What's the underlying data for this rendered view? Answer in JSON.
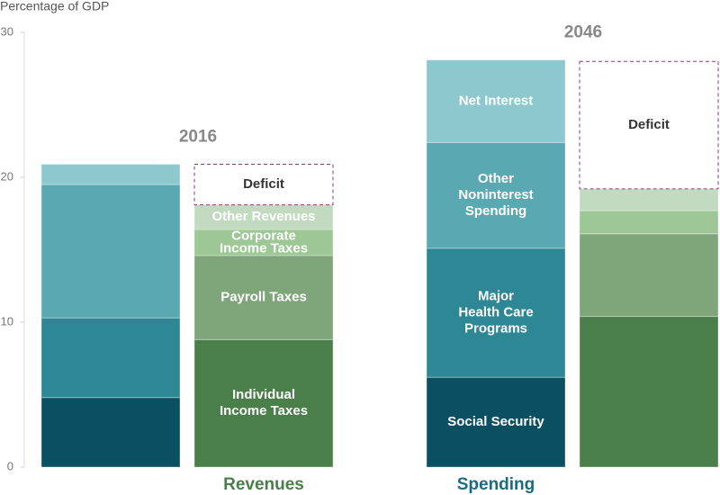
{
  "chart_data": {
    "type": "stacked_bar",
    "ylabel": "Percentage of GDP",
    "ylim": [
      0,
      30
    ],
    "yticks": [
      0,
      10,
      20,
      30
    ],
    "groups": [
      {
        "label": "2016",
        "bars": [
          {
            "caption": null,
            "segments": [
              {
                "label": [
                  "Social Security"
                ],
                "color": "#0b4f63",
                "value": 4.8,
                "show_label": false
              },
              {
                "label": [
                  "Major",
                  "Health Care",
                  "Programs"
                ],
                "color": "#2e8795",
                "value": 5.5,
                "show_label": false
              },
              {
                "label": [
                  "Other",
                  "Noninterest",
                  "Spending"
                ],
                "color": "#5aa9b2",
                "value": 9.2,
                "show_label": false
              },
              {
                "label": [
                  "Net Interest"
                ],
                "color": "#8ec8cf",
                "value": 1.4,
                "show_label": false
              }
            ]
          },
          {
            "caption": "Revenues",
            "caption_color": "#4a7f4a",
            "segments": [
              {
                "label": [
                  "Individual",
                  "Income Taxes"
                ],
                "color": "#4a7f4a",
                "value": 8.8,
                "show_label": true
              },
              {
                "label": [
                  "Payroll Taxes"
                ],
                "color": "#7fa57a",
                "value": 5.8,
                "show_label": true
              },
              {
                "label": [
                  "Corporate",
                  "Income Taxes"
                ],
                "color": "#9dc795",
                "value": 1.8,
                "show_label": true
              },
              {
                "label": [
                  "Other Revenues"
                ],
                "color": "#c2dbc0",
                "value": 1.7,
                "show_label": true
              },
              {
                "label": [
                  "Deficit"
                ],
                "color": null,
                "dashed": true,
                "value": 2.8,
                "show_label": true
              }
            ]
          }
        ]
      },
      {
        "label": "2046",
        "bars": [
          {
            "caption": "Spending",
            "caption_color": "#1a6a80",
            "segments": [
              {
                "label": [
                  "Social Security"
                ],
                "color": "#0b4f63",
                "value": 6.2,
                "show_label": true
              },
              {
                "label": [
                  "Major",
                  "Health Care",
                  "Programs"
                ],
                "color": "#2e8795",
                "value": 8.9,
                "show_label": true
              },
              {
                "label": [
                  "Other",
                  "Noninterest",
                  "Spending"
                ],
                "color": "#5aa9b2",
                "value": 7.3,
                "show_label": true
              },
              {
                "label": [
                  "Net Interest"
                ],
                "color": "#8ec8cf",
                "value": 5.7,
                "show_label": true
              }
            ]
          },
          {
            "caption": null,
            "segments": [
              {
                "label": [
                  "Individual",
                  "Income Taxes"
                ],
                "color": "#4a7f4a",
                "value": 10.4,
                "show_label": false
              },
              {
                "label": [
                  "Payroll Taxes"
                ],
                "color": "#7fa57a",
                "value": 5.7,
                "show_label": false
              },
              {
                "label": [
                  "Corporate",
                  "Income Taxes"
                ],
                "color": "#9dc795",
                "value": 1.6,
                "show_label": false
              },
              {
                "label": [
                  "Other Revenues"
                ],
                "color": "#c2dbc0",
                "value": 1.5,
                "show_label": false
              },
              {
                "label": [
                  "Deficit"
                ],
                "color": null,
                "dashed": true,
                "value": 8.8,
                "show_label": true
              }
            ]
          }
        ]
      }
    ]
  }
}
